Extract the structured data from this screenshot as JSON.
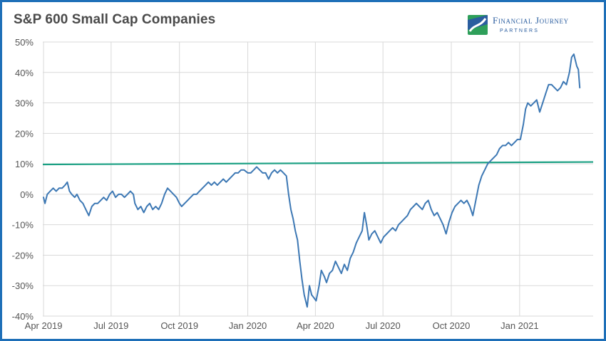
{
  "title": "S&P 600 Small Cap Companies",
  "logo": {
    "line1": "Financial Journey",
    "line2": "Partners",
    "icon": "fjp-logo-icon"
  },
  "colors": {
    "line": "#3d78b4",
    "reference": "#1aa083",
    "grid": "#d9d9d9",
    "frame": "#1e6fb8"
  },
  "chart_data": {
    "type": "line",
    "title": "S&P 600 Small Cap Companies",
    "xlabel": "",
    "ylabel": "",
    "ylim": [
      -40,
      50
    ],
    "xlim": [
      "2019-03-31",
      "2021-04-10"
    ],
    "yticks": [
      {
        "v": 50,
        "label": "50%"
      },
      {
        "v": 40,
        "label": "40%"
      },
      {
        "v": 30,
        "label": "30%"
      },
      {
        "v": 20,
        "label": "20%"
      },
      {
        "v": 10,
        "label": "10%"
      },
      {
        "v": 0,
        "label": "0%"
      },
      {
        "v": -10,
        "label": "-10%"
      },
      {
        "v": -20,
        "label": "-20%"
      },
      {
        "v": -30,
        "label": "-30%"
      },
      {
        "v": -40,
        "label": "-40%"
      }
    ],
    "xticks": [
      {
        "d": "2019-04-01",
        "label": "Apr 2019"
      },
      {
        "d": "2019-07-01",
        "label": "Jul 2019"
      },
      {
        "d": "2019-10-01",
        "label": "Oct 2019"
      },
      {
        "d": "2020-01-01",
        "label": "Jan 2020"
      },
      {
        "d": "2020-04-01",
        "label": "Apr 2020"
      },
      {
        "d": "2020-07-01",
        "label": "Jul 2020"
      },
      {
        "d": "2020-10-01",
        "label": "Oct 2020"
      },
      {
        "d": "2021-01-01",
        "label": "Jan 2021"
      }
    ],
    "grid": true,
    "reference_line": {
      "y_start": 9.8,
      "y_end": 10.6
    },
    "series": [
      {
        "values": [
          [
            "2019-04-01",
            -1
          ],
          [
            "2019-04-03",
            -3
          ],
          [
            "2019-04-06",
            0
          ],
          [
            "2019-04-10",
            1
          ],
          [
            "2019-04-14",
            2
          ],
          [
            "2019-04-18",
            1
          ],
          [
            "2019-04-22",
            2
          ],
          [
            "2019-04-26",
            2
          ],
          [
            "2019-04-30",
            3
          ],
          [
            "2019-05-03",
            4
          ],
          [
            "2019-05-06",
            1
          ],
          [
            "2019-05-09",
            0
          ],
          [
            "2019-05-13",
            -1
          ],
          [
            "2019-05-16",
            0
          ],
          [
            "2019-05-20",
            -2
          ],
          [
            "2019-05-24",
            -3
          ],
          [
            "2019-05-28",
            -5
          ],
          [
            "2019-06-01",
            -7
          ],
          [
            "2019-06-05",
            -4
          ],
          [
            "2019-06-09",
            -3
          ],
          [
            "2019-06-13",
            -3
          ],
          [
            "2019-06-17",
            -2
          ],
          [
            "2019-06-21",
            -1
          ],
          [
            "2019-06-25",
            -2
          ],
          [
            "2019-06-29",
            0
          ],
          [
            "2019-07-03",
            1
          ],
          [
            "2019-07-07",
            -1
          ],
          [
            "2019-07-11",
            0
          ],
          [
            "2019-07-15",
            0
          ],
          [
            "2019-07-19",
            -1
          ],
          [
            "2019-07-23",
            0
          ],
          [
            "2019-07-27",
            1
          ],
          [
            "2019-07-31",
            0
          ],
          [
            "2019-08-02",
            -3
          ],
          [
            "2019-08-06",
            -5
          ],
          [
            "2019-08-10",
            -4
          ],
          [
            "2019-08-14",
            -6
          ],
          [
            "2019-08-18",
            -4
          ],
          [
            "2019-08-22",
            -3
          ],
          [
            "2019-08-26",
            -5
          ],
          [
            "2019-08-30",
            -4
          ],
          [
            "2019-09-03",
            -5
          ],
          [
            "2019-09-07",
            -3
          ],
          [
            "2019-09-11",
            0
          ],
          [
            "2019-09-15",
            2
          ],
          [
            "2019-09-19",
            1
          ],
          [
            "2019-09-23",
            0
          ],
          [
            "2019-09-27",
            -1
          ],
          [
            "2019-10-01",
            -3
          ],
          [
            "2019-10-04",
            -4
          ],
          [
            "2019-10-08",
            -3
          ],
          [
            "2019-10-12",
            -2
          ],
          [
            "2019-10-16",
            -1
          ],
          [
            "2019-10-20",
            0
          ],
          [
            "2019-10-24",
            0
          ],
          [
            "2019-10-28",
            1
          ],
          [
            "2019-11-01",
            2
          ],
          [
            "2019-11-05",
            3
          ],
          [
            "2019-11-09",
            4
          ],
          [
            "2019-11-13",
            3
          ],
          [
            "2019-11-17",
            4
          ],
          [
            "2019-11-21",
            3
          ],
          [
            "2019-11-25",
            4
          ],
          [
            "2019-11-29",
            5
          ],
          [
            "2019-12-03",
            4
          ],
          [
            "2019-12-07",
            5
          ],
          [
            "2019-12-11",
            6
          ],
          [
            "2019-12-15",
            7
          ],
          [
            "2019-12-19",
            7
          ],
          [
            "2019-12-23",
            8
          ],
          [
            "2019-12-27",
            8
          ],
          [
            "2020-01-01",
            7
          ],
          [
            "2020-01-05",
            7
          ],
          [
            "2020-01-09",
            8
          ],
          [
            "2020-01-13",
            9
          ],
          [
            "2020-01-17",
            8
          ],
          [
            "2020-01-21",
            7
          ],
          [
            "2020-01-25",
            7
          ],
          [
            "2020-01-29",
            5
          ],
          [
            "2020-02-02",
            7
          ],
          [
            "2020-02-06",
            8
          ],
          [
            "2020-02-10",
            7
          ],
          [
            "2020-02-14",
            8
          ],
          [
            "2020-02-18",
            7
          ],
          [
            "2020-02-22",
            6
          ],
          [
            "2020-02-25",
            0
          ],
          [
            "2020-02-28",
            -5
          ],
          [
            "2020-03-02",
            -8
          ],
          [
            "2020-03-05",
            -12
          ],
          [
            "2020-03-08",
            -15
          ],
          [
            "2020-03-11",
            -22
          ],
          [
            "2020-03-14",
            -28
          ],
          [
            "2020-03-17",
            -33
          ],
          [
            "2020-03-19",
            -35
          ],
          [
            "2020-03-21",
            -37
          ],
          [
            "2020-03-24",
            -30
          ],
          [
            "2020-03-27",
            -33
          ],
          [
            "2020-03-30",
            -34
          ],
          [
            "2020-04-02",
            -35
          ],
          [
            "2020-04-06",
            -30
          ],
          [
            "2020-04-09",
            -25
          ],
          [
            "2020-04-13",
            -27
          ],
          [
            "2020-04-16",
            -29
          ],
          [
            "2020-04-20",
            -26
          ],
          [
            "2020-04-24",
            -25
          ],
          [
            "2020-04-28",
            -22
          ],
          [
            "2020-05-02",
            -24
          ],
          [
            "2020-05-06",
            -26
          ],
          [
            "2020-05-10",
            -23
          ],
          [
            "2020-05-14",
            -25
          ],
          [
            "2020-05-18",
            -21
          ],
          [
            "2020-05-22",
            -19
          ],
          [
            "2020-05-26",
            -16
          ],
          [
            "2020-05-30",
            -14
          ],
          [
            "2020-06-03",
            -12
          ],
          [
            "2020-06-06",
            -6
          ],
          [
            "2020-06-09",
            -10
          ],
          [
            "2020-06-12",
            -15
          ],
          [
            "2020-06-16",
            -13
          ],
          [
            "2020-06-20",
            -12
          ],
          [
            "2020-06-24",
            -14
          ],
          [
            "2020-06-28",
            -16
          ],
          [
            "2020-07-02",
            -14
          ],
          [
            "2020-07-06",
            -13
          ],
          [
            "2020-07-10",
            -12
          ],
          [
            "2020-07-14",
            -11
          ],
          [
            "2020-07-18",
            -12
          ],
          [
            "2020-07-22",
            -10
          ],
          [
            "2020-07-26",
            -9
          ],
          [
            "2020-07-30",
            -8
          ],
          [
            "2020-08-03",
            -7
          ],
          [
            "2020-08-07",
            -5
          ],
          [
            "2020-08-11",
            -4
          ],
          [
            "2020-08-15",
            -3
          ],
          [
            "2020-08-19",
            -4
          ],
          [
            "2020-08-23",
            -5
          ],
          [
            "2020-08-27",
            -3
          ],
          [
            "2020-08-31",
            -2
          ],
          [
            "2020-09-04",
            -5
          ],
          [
            "2020-09-08",
            -7
          ],
          [
            "2020-09-12",
            -6
          ],
          [
            "2020-09-16",
            -8
          ],
          [
            "2020-09-20",
            -10
          ],
          [
            "2020-09-24",
            -13
          ],
          [
            "2020-09-28",
            -9
          ],
          [
            "2020-10-02",
            -6
          ],
          [
            "2020-10-06",
            -4
          ],
          [
            "2020-10-10",
            -3
          ],
          [
            "2020-10-14",
            -2
          ],
          [
            "2020-10-18",
            -3
          ],
          [
            "2020-10-22",
            -2
          ],
          [
            "2020-10-26",
            -4
          ],
          [
            "2020-10-30",
            -7
          ],
          [
            "2020-11-03",
            -2
          ],
          [
            "2020-11-07",
            3
          ],
          [
            "2020-11-11",
            6
          ],
          [
            "2020-11-15",
            8
          ],
          [
            "2020-11-19",
            10
          ],
          [
            "2020-11-23",
            11
          ],
          [
            "2020-11-27",
            12
          ],
          [
            "2020-12-01",
            13
          ],
          [
            "2020-12-05",
            15
          ],
          [
            "2020-12-09",
            16
          ],
          [
            "2020-12-13",
            16
          ],
          [
            "2020-12-17",
            17
          ],
          [
            "2020-12-21",
            16
          ],
          [
            "2020-12-25",
            17
          ],
          [
            "2020-12-29",
            18
          ],
          [
            "2021-01-02",
            18
          ],
          [
            "2021-01-06",
            23
          ],
          [
            "2021-01-09",
            28
          ],
          [
            "2021-01-12",
            30
          ],
          [
            "2021-01-16",
            29
          ],
          [
            "2021-01-20",
            30
          ],
          [
            "2021-01-24",
            31
          ],
          [
            "2021-01-28",
            27
          ],
          [
            "2021-02-01",
            30
          ],
          [
            "2021-02-05",
            33
          ],
          [
            "2021-02-09",
            36
          ],
          [
            "2021-02-13",
            36
          ],
          [
            "2021-02-17",
            35
          ],
          [
            "2021-02-21",
            34
          ],
          [
            "2021-02-25",
            35
          ],
          [
            "2021-03-01",
            37
          ],
          [
            "2021-03-05",
            36
          ],
          [
            "2021-03-09",
            40
          ],
          [
            "2021-03-12",
            45
          ],
          [
            "2021-03-15",
            46
          ],
          [
            "2021-03-17",
            44
          ],
          [
            "2021-03-19",
            42
          ],
          [
            "2021-03-21",
            41
          ],
          [
            "2021-03-23",
            35
          ]
        ]
      }
    ]
  }
}
